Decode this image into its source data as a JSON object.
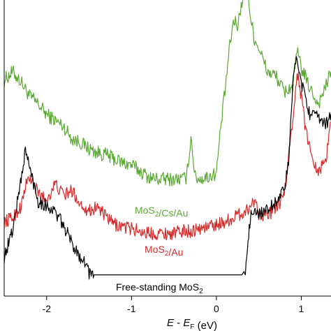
{
  "chart_data": {
    "type": "line",
    "title": "",
    "xlabel": {
      "text": "(eV)",
      "parts": [
        {
          "text": "E",
          "italic": true
        },
        {
          "text": " - "
        },
        {
          "text": "E",
          "italic": true
        },
        {
          "text": "F",
          "sub": true
        },
        {
          "text": " (eV)"
        }
      ]
    },
    "ylabel": "",
    "xlim": [
      -2.5,
      1.35
    ],
    "x_ticks": [
      -2,
      -1,
      0,
      1
    ],
    "x_tick_labels": [
      "-2",
      "-1",
      "0",
      "1"
    ],
    "yaxis": "arbitrary units, vertically offset curves, no tick labels",
    "grid": false,
    "legend": "none (curves labelled directly)",
    "series": [
      {
        "name": "MoS2/Cs/Au",
        "label_parts": [
          {
            "text": "MoS"
          },
          {
            "text": "2",
            "sub": true
          },
          {
            "text": "/Cs/Au"
          }
        ],
        "color": "#5aa832",
        "x": [
          -2.5,
          -2.4,
          -2.3,
          -2.2,
          -2.1,
          -2.0,
          -1.9,
          -1.8,
          -1.7,
          -1.6,
          -1.5,
          -1.4,
          -1.3,
          -1.2,
          -1.1,
          -1.0,
          -0.9,
          -0.8,
          -0.7,
          -0.6,
          -0.5,
          -0.4,
          -0.35,
          -0.3,
          -0.25,
          -0.2,
          -0.1,
          0.0,
          0.05,
          0.1,
          0.15,
          0.2,
          0.25,
          0.3,
          0.35,
          0.4,
          0.45,
          0.5,
          0.6,
          0.7,
          0.8,
          0.9,
          0.95,
          1.0,
          1.1,
          1.2,
          1.3,
          1.35
        ],
        "y": [
          0.64,
          0.68,
          0.63,
          0.56,
          0.52,
          0.47,
          0.44,
          0.41,
          0.35,
          0.33,
          0.3,
          0.28,
          0.27,
          0.25,
          0.23,
          0.22,
          0.19,
          0.16,
          0.15,
          0.15,
          0.15,
          0.15,
          0.16,
          0.36,
          0.16,
          0.15,
          0.16,
          0.18,
          0.4,
          0.58,
          0.78,
          0.93,
          0.91,
          1.02,
          1.2,
          0.95,
          0.84,
          0.8,
          0.68,
          0.66,
          0.58,
          0.61,
          0.78,
          0.7,
          0.6,
          0.52,
          0.62,
          0.68
        ]
      },
      {
        "name": "MoS2/Au",
        "label_parts": [
          {
            "text": "MoS"
          },
          {
            "text": "2",
            "sub": true
          },
          {
            "text": "/Au"
          }
        ],
        "color": "#d42a2a",
        "x": [
          -2.5,
          -2.4,
          -2.3,
          -2.25,
          -2.2,
          -2.1,
          -2.0,
          -1.9,
          -1.8,
          -1.7,
          -1.6,
          -1.5,
          -1.4,
          -1.3,
          -1.2,
          -1.1,
          -1.0,
          -0.9,
          -0.8,
          -0.7,
          -0.6,
          -0.5,
          -0.4,
          -0.3,
          -0.2,
          -0.1,
          0.0,
          0.1,
          0.2,
          0.3,
          0.35,
          0.4,
          0.45,
          0.5,
          0.6,
          0.7,
          0.8,
          0.9,
          0.95,
          1.0,
          1.05,
          1.1,
          1.2,
          1.3,
          1.35
        ],
        "y": [
          0.1,
          0.12,
          0.17,
          0.26,
          0.3,
          0.23,
          0.2,
          0.27,
          0.22,
          0.24,
          0.18,
          0.15,
          0.17,
          0.12,
          0.09,
          0.08,
          0.07,
          0.06,
          0.05,
          0.05,
          0.05,
          0.05,
          0.06,
          0.06,
          0.07,
          0.08,
          0.09,
          0.1,
          0.12,
          0.14,
          0.15,
          0.17,
          0.2,
          0.14,
          0.13,
          0.16,
          0.22,
          0.56,
          0.78,
          0.66,
          0.52,
          0.43,
          0.32,
          0.4,
          0.55
        ]
      },
      {
        "name": "Free-standing MoS2",
        "label_parts": [
          {
            "text": "Free-standing MoS"
          },
          {
            "text": "2",
            "sub": true
          }
        ],
        "color": "#000000",
        "x": [
          -2.5,
          -2.4,
          -2.3,
          -2.25,
          -2.2,
          -2.1,
          -2.0,
          -1.9,
          -1.8,
          -1.7,
          -1.6,
          -1.55,
          -1.5,
          -1.45,
          -1.0,
          -0.5,
          0.0,
          0.3,
          0.35,
          0.38,
          0.4,
          0.5,
          0.6,
          0.7,
          0.8,
          0.85,
          0.9,
          0.95,
          1.0,
          1.05,
          1.1,
          1.2,
          1.3,
          1.35
        ],
        "y": [
          0.1,
          0.22,
          0.45,
          0.58,
          0.5,
          0.35,
          0.33,
          0.3,
          0.24,
          0.16,
          0.1,
          0.08,
          0.03,
          0.02,
          0.02,
          0.02,
          0.02,
          0.02,
          0.05,
          0.2,
          0.28,
          0.3,
          0.31,
          0.35,
          0.4,
          0.52,
          0.88,
          1.0,
          0.88,
          0.82,
          0.74,
          0.72,
          0.7,
          0.74
        ]
      }
    ]
  }
}
